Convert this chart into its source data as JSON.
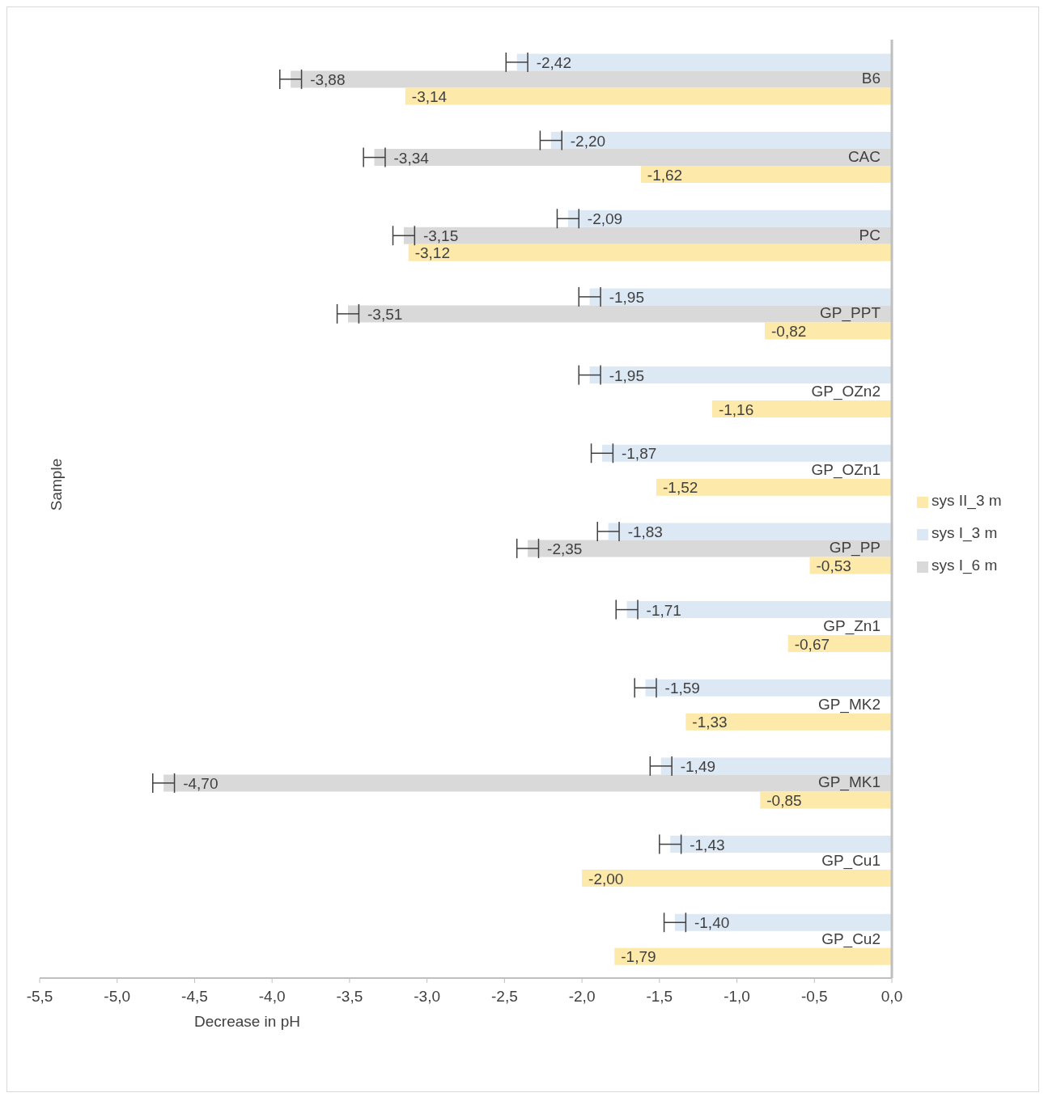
{
  "chart_data": {
    "type": "bar",
    "orientation": "horizontal",
    "xlabel": "Decrease in pH",
    "ylabel": "Sample",
    "categories": [
      "B6",
      "CAC",
      "PC",
      "GP_PPT",
      "GP_OZn2",
      "GP_OZn1",
      "GP_PP",
      "GP_Zn1",
      "GP_MK2",
      "GP_MK1",
      "GP_Cu1",
      "GP_Cu2"
    ],
    "series": [
      {
        "name": "sys I_3 m",
        "color": "#dde8f5",
        "values": [
          -2.42,
          -2.2,
          -2.09,
          -1.95,
          -1.95,
          -1.87,
          -1.83,
          -1.71,
          -1.59,
          -1.49,
          -1.43,
          -1.4
        ],
        "errors": [
          0.07,
          0.07,
          0.07,
          0.07,
          0.07,
          0.07,
          0.07,
          0.07,
          0.07,
          0.07,
          0.07,
          0.07
        ],
        "value_labels": [
          "-2,42",
          "-2,20",
          "-2,09",
          "-1,95",
          "-1,95",
          "-1,87",
          "-1,83",
          "-1,71",
          "-1,59",
          "-1,49",
          "-1,43",
          "-1,40"
        ]
      },
      {
        "name": "sys I_6 m",
        "color": "#d9d9d9",
        "values": [
          -3.88,
          -3.34,
          -3.15,
          -3.51,
          null,
          null,
          -2.35,
          null,
          null,
          -4.7,
          null,
          null
        ],
        "errors": [
          0.07,
          0.07,
          0.07,
          0.07,
          null,
          null,
          0.07,
          null,
          null,
          0.07,
          null,
          null
        ],
        "value_labels": [
          "-3,88",
          "-3,34",
          "-3,15",
          "-3,51",
          null,
          null,
          "-2,35",
          null,
          null,
          "-4,70",
          null,
          null
        ]
      },
      {
        "name": "sys II_3 m",
        "color": "#fde9a9",
        "values": [
          -3.14,
          -1.62,
          -3.12,
          -0.82,
          -1.16,
          -1.52,
          -0.53,
          -0.67,
          -1.33,
          -0.85,
          -2.0,
          -1.79
        ],
        "value_labels": [
          "-3,14",
          "-1,62",
          "-3,12",
          "-0,82",
          "-1,16",
          "-1,52",
          "-0,53",
          "-0,67",
          "-1,33",
          "-0,85",
          "-2,00",
          "-1,79"
        ]
      }
    ],
    "xlim": [
      -5.5,
      0
    ],
    "xticks": [
      {
        "value": -5.5,
        "label": "-5,5"
      },
      {
        "value": -5,
        "label": "-5,0"
      },
      {
        "value": -4.5,
        "label": "-4,5"
      },
      {
        "value": -4,
        "label": "-4,0"
      },
      {
        "value": -3.5,
        "label": "-3,5"
      },
      {
        "value": -3,
        "label": "-3,0"
      },
      {
        "value": -2.5,
        "label": "-2,5"
      },
      {
        "value": -2,
        "label": "-2,0"
      },
      {
        "value": -1.5,
        "label": "-1,5"
      },
      {
        "value": -1,
        "label": "-1,0"
      },
      {
        "value": -0.5,
        "label": "-0,5"
      },
      {
        "value": 0,
        "label": "0,0"
      }
    ],
    "legend": "right",
    "grid": false
  }
}
